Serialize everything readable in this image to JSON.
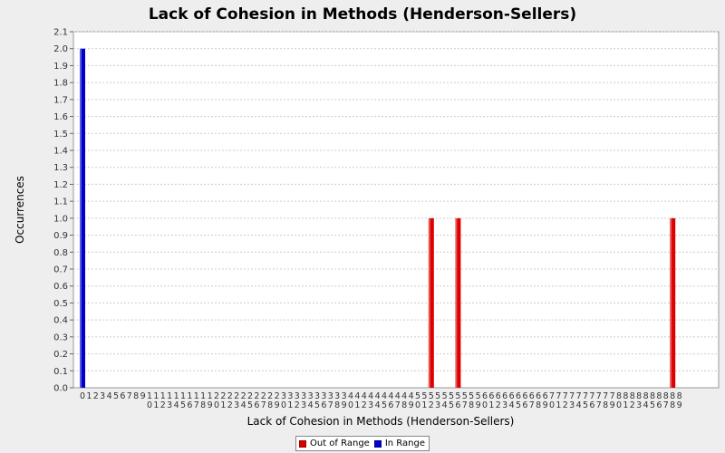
{
  "chart_data": {
    "type": "bar",
    "title": "Lack of Cohesion in Methods (Henderson-Sellers)",
    "xlabel": "Lack of Cohesion in Methods (Henderson-Sellers)",
    "ylabel": "Occurrences",
    "categories": [
      "0",
      "1",
      "2",
      "3",
      "4",
      "5",
      "6",
      "7",
      "8",
      "9",
      "10",
      "11",
      "12",
      "13",
      "14",
      "15",
      "16",
      "17",
      "18",
      "19",
      "20",
      "21",
      "22",
      "23",
      "24",
      "25",
      "26",
      "27",
      "28",
      "29",
      "30",
      "31",
      "32",
      "33",
      "34",
      "35",
      "36",
      "37",
      "38",
      "39",
      "40",
      "41",
      "42",
      "43",
      "44",
      "45",
      "46",
      "47",
      "48",
      "49",
      "50",
      "51",
      "52",
      "53",
      "54",
      "55",
      "56",
      "57",
      "58",
      "59",
      "60",
      "61",
      "62",
      "63",
      "64",
      "65",
      "66",
      "67",
      "68",
      "69",
      "70",
      "71",
      "72",
      "73",
      "74",
      "75",
      "76",
      "77",
      "78",
      "79",
      "80",
      "81",
      "82",
      "83",
      "84",
      "85",
      "86",
      "87",
      "88",
      "89"
    ],
    "series": [
      {
        "name": "Out of Range",
        "color": "#dd0000",
        "points": [
          {
            "x": "52",
            "y": 1.0
          },
          {
            "x": "56",
            "y": 1.0
          },
          {
            "x": "88",
            "y": 1.0
          }
        ]
      },
      {
        "name": "In Range",
        "color": "#0000cc",
        "points": [
          {
            "x": "0",
            "y": 2.0
          }
        ]
      }
    ],
    "ylim": [
      0,
      2.1
    ],
    "ytick_step": 0.1,
    "grid": true,
    "legend_position": "bottom-center"
  }
}
